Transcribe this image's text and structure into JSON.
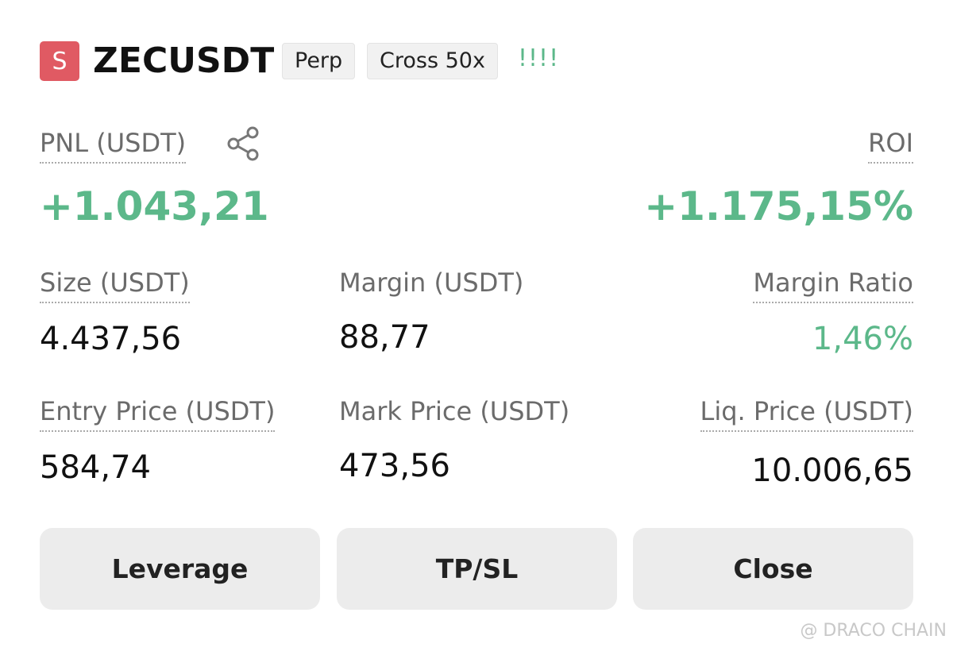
{
  "header": {
    "badge": "S",
    "symbol": "ZECUSDT",
    "tags": [
      "Perp",
      "Cross 50x"
    ],
    "indicator": "!!!!"
  },
  "pnl": {
    "label": "PNL (USDT)",
    "value": "+1.043,21"
  },
  "roi": {
    "label": "ROI",
    "value": "+1.175,15%"
  },
  "stats": [
    [
      {
        "label": "Size (USDT)",
        "value": "4.437,56"
      },
      {
        "label": "Margin (USDT)",
        "value": "88,77"
      },
      {
        "label": "Margin Ratio",
        "value": "1,46%"
      }
    ],
    [
      {
        "label": "Entry Price (USDT)",
        "value": "584,74"
      },
      {
        "label": "Mark Price (USDT)",
        "value": "473,56"
      },
      {
        "label": "Liq. Price (USDT)",
        "value": "10.006,65"
      }
    ]
  ],
  "buttons": [
    "Leverage",
    "TP/SL",
    "Close"
  ],
  "watermark": "@ DRACO CHAIN"
}
